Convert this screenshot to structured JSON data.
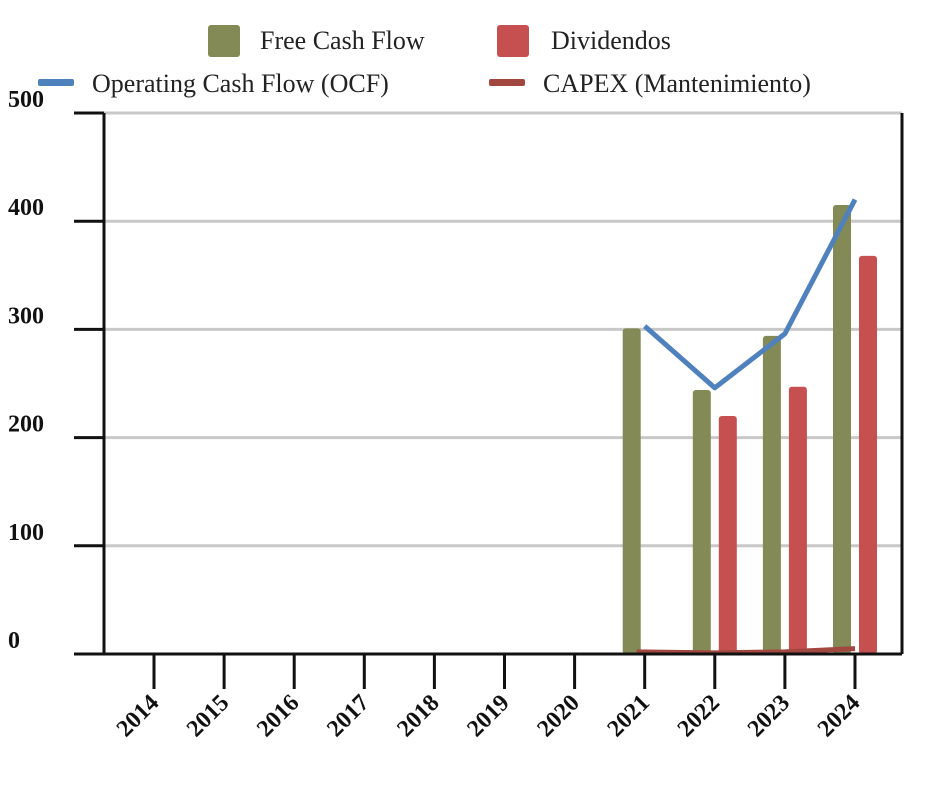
{
  "chart_data": {
    "type": "bar",
    "title": "",
    "xlabel": "",
    "ylabel": "",
    "ylim": [
      0,
      500
    ],
    "yticks": [
      0,
      100,
      200,
      300,
      400,
      500
    ],
    "grid": true,
    "legend_position": "top",
    "categories": [
      "2014",
      "2015",
      "2016",
      "2017",
      "2018",
      "2019",
      "2020",
      "2021",
      "2022",
      "2023",
      "2024"
    ],
    "bar_series": [
      {
        "name": "Free Cash Flow",
        "color": "#838a56",
        "values": [
          null,
          null,
          null,
          null,
          null,
          null,
          null,
          301,
          244,
          294,
          415
        ]
      },
      {
        "name": "Dividendos",
        "color": "#c64f4f",
        "values": [
          null,
          null,
          null,
          null,
          null,
          null,
          null,
          null,
          220,
          247,
          368
        ]
      }
    ],
    "line_series": [
      {
        "name": "Operating Cash Flow (OCF)",
        "color": "#4f81bd",
        "values": [
          null,
          null,
          null,
          null,
          null,
          null,
          null,
          303,
          246,
          296,
          420
        ]
      },
      {
        "name": "CAPEX (Mantenimiento)",
        "color": "#a2473f",
        "values": [
          null,
          null,
          null,
          null,
          null,
          null,
          null,
          2,
          1,
          2,
          5
        ]
      }
    ]
  }
}
